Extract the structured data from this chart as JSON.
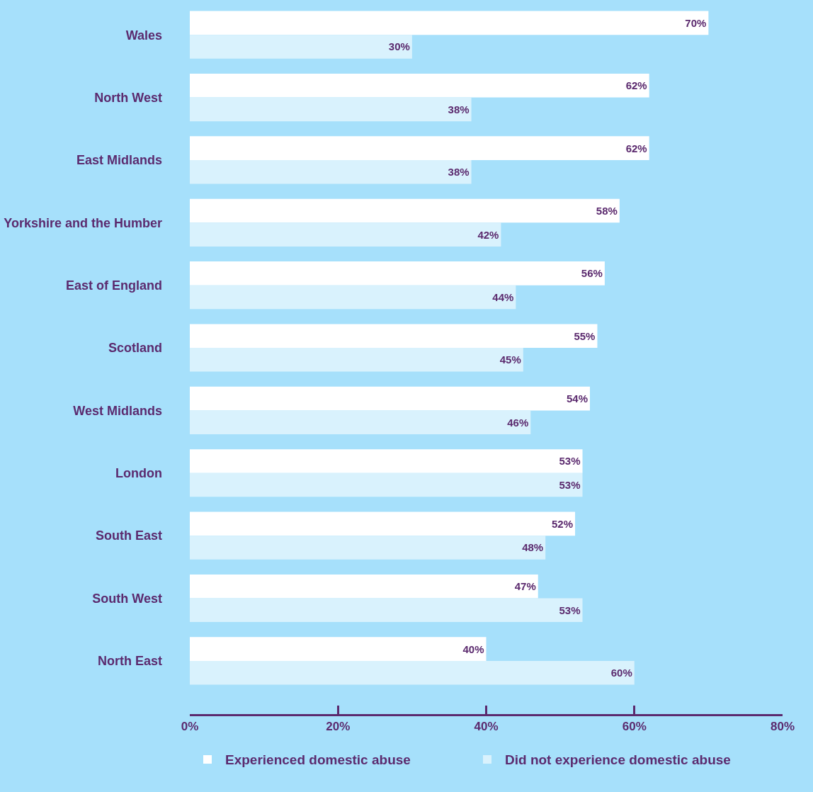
{
  "chart_data": {
    "type": "bar",
    "orientation": "horizontal",
    "categories": [
      "Wales",
      "North West",
      "East Midlands",
      "Yorkshire and the Humber",
      "East of England",
      "Scotland",
      "West Midlands",
      "London",
      "South East",
      "South West",
      "North East"
    ],
    "series": [
      {
        "name": "Experienced domestic abuse",
        "color": "#ffffff",
        "values": [
          70,
          62,
          62,
          58,
          56,
          55,
          54,
          53,
          52,
          47,
          40
        ],
        "value_labels": [
          "70%",
          "62%",
          "62%",
          "58%",
          "56%",
          "55%",
          "54%",
          "53%",
          "52%",
          "47%",
          "40%"
        ]
      },
      {
        "name": "Did not experience domestic abuse",
        "color": "#d9f2fd",
        "values": [
          30,
          38,
          38,
          42,
          44,
          45,
          46,
          53,
          48,
          53,
          60
        ],
        "value_labels": [
          "30%",
          "38%",
          "38%",
          "42%",
          "44%",
          "45%",
          "46%",
          "53%",
          "48%",
          "53%",
          "60%"
        ]
      }
    ],
    "xlim": [
      0,
      80
    ],
    "xticks": [
      {
        "value": 0,
        "label": "0%"
      },
      {
        "value": 20,
        "label": "20%"
      },
      {
        "value": 40,
        "label": "40%"
      },
      {
        "value": 60,
        "label": "60%"
      },
      {
        "value": 80,
        "label": "80%"
      }
    ],
    "grid": false,
    "legend": "bottom"
  }
}
